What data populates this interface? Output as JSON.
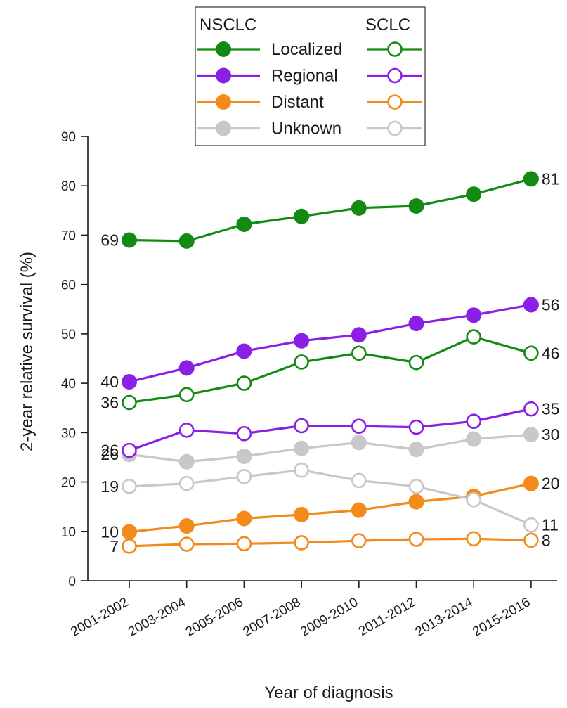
{
  "chart_data": {
    "type": "line",
    "title": "",
    "xlabel": "Year of diagnosis",
    "ylabel": "2-year relative survival (%)",
    "ylim": [
      0,
      90
    ],
    "yticks": [
      0,
      10,
      20,
      30,
      40,
      50,
      60,
      70,
      80,
      90
    ],
    "categories": [
      "2001-2002",
      "2003-2004",
      "2005-2006",
      "2007-2008",
      "2009-2010",
      "2011-2012",
      "2013-2014",
      "2015-2016"
    ],
    "grid": false,
    "legend": {
      "placement": "top-center",
      "left_heading": "NSCLC",
      "right_heading": "SCLC",
      "entries": [
        "Localized",
        "Regional",
        "Distant",
        "Unknown"
      ]
    },
    "colors": {
      "Localized": "#138a13",
      "Regional": "#8b1fe6",
      "Distant": "#f28a1c",
      "Unknown": "#c8c8c8"
    },
    "series": [
      {
        "group": "NSCLC",
        "stage": "Localized",
        "marker": "filled",
        "values": [
          69,
          68.8,
          72.2,
          73.8,
          75.5,
          75.9,
          78.3,
          81.4
        ]
      },
      {
        "group": "NSCLC",
        "stage": "Regional",
        "marker": "filled",
        "values": [
          40.3,
          43.1,
          46.5,
          48.6,
          49.8,
          52.1,
          53.8,
          55.9
        ]
      },
      {
        "group": "NSCLC",
        "stage": "Distant",
        "marker": "filled",
        "values": [
          9.9,
          11.1,
          12.6,
          13.4,
          14.3,
          16,
          17.1,
          19.7
        ]
      },
      {
        "group": "NSCLC",
        "stage": "Unknown",
        "marker": "filled",
        "values": [
          25.6,
          24.1,
          25.2,
          26.8,
          28,
          26.6,
          28.7,
          29.6
        ]
      },
      {
        "group": "SCLC",
        "stage": "Localized",
        "marker": "open",
        "values": [
          36.1,
          37.7,
          40,
          44.3,
          46.1,
          44.2,
          49.4,
          46.1
        ]
      },
      {
        "group": "SCLC",
        "stage": "Regional",
        "marker": "open",
        "values": [
          26.4,
          30.5,
          29.8,
          31.4,
          31.3,
          31.1,
          32.3,
          34.8
        ]
      },
      {
        "group": "SCLC",
        "stage": "Distant",
        "marker": "open",
        "values": [
          7,
          7.4,
          7.5,
          7.7,
          8.1,
          8.4,
          8.5,
          8.2
        ]
      },
      {
        "group": "SCLC",
        "stage": "Unknown",
        "marker": "open",
        "values": [
          19.1,
          19.7,
          21.1,
          22.4,
          20.3,
          19.1,
          16.4,
          11.3
        ]
      }
    ],
    "data_labels": [
      {
        "series": 0,
        "point": 0,
        "side": "left",
        "text": "69"
      },
      {
        "series": 0,
        "point": 7,
        "side": "right",
        "text": "81"
      },
      {
        "series": 1,
        "point": 0,
        "side": "left",
        "text": "40"
      },
      {
        "series": 1,
        "point": 7,
        "side": "right",
        "text": "56"
      },
      {
        "series": 4,
        "point": 0,
        "side": "left",
        "text": "36"
      },
      {
        "series": 4,
        "point": 7,
        "side": "right",
        "text": "46"
      },
      {
        "series": 5,
        "point": 0,
        "side": "left",
        "text": "26"
      },
      {
        "series": 5,
        "point": 7,
        "side": "right",
        "text": "35"
      },
      {
        "series": 3,
        "point": 0,
        "side": "left",
        "text": "26"
      },
      {
        "series": 3,
        "point": 7,
        "side": "right",
        "text": "30"
      },
      {
        "series": 7,
        "point": 0,
        "side": "left",
        "text": "19"
      },
      {
        "series": 2,
        "point": 7,
        "side": "right",
        "text": "20"
      },
      {
        "series": 2,
        "point": 0,
        "side": "left",
        "text": "10"
      },
      {
        "series": 7,
        "point": 7,
        "side": "right",
        "text": "11"
      },
      {
        "series": 6,
        "point": 0,
        "side": "left",
        "text": "7"
      },
      {
        "series": 6,
        "point": 7,
        "side": "right",
        "text": "8"
      }
    ]
  }
}
